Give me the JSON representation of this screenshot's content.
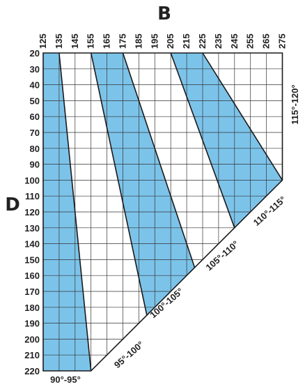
{
  "diagram": {
    "axis_b_title": "B",
    "axis_d_title": "D",
    "b_values": [
      125,
      135,
      145,
      155,
      165,
      175,
      185,
      195,
      205,
      215,
      225,
      235,
      245,
      255,
      265,
      275
    ],
    "d_values": [
      20,
      30,
      40,
      50,
      60,
      70,
      80,
      90,
      100,
      110,
      120,
      130,
      140,
      150,
      160,
      170,
      180,
      190,
      200,
      210,
      220
    ],
    "zones": [
      {
        "label": "90°-95°",
        "filled": true,
        "top": [
          125,
          135
        ],
        "bottom": [
          125,
          155
        ]
      },
      {
        "label": "95°-100°",
        "filled": false,
        "top": [
          135,
          155
        ],
        "bottom": [
          155,
          190
        ]
      },
      {
        "label": "100°-105°",
        "filled": true,
        "top": [
          155,
          175
        ],
        "bottom": [
          190,
          220
        ]
      },
      {
        "label": "105°-110°",
        "filled": false,
        "top": [
          175,
          205
        ],
        "bottom": [
          220,
          245
        ]
      },
      {
        "label": "110°-115°",
        "filled": true,
        "top": [
          205,
          225
        ],
        "bottom": [
          245,
          275
        ]
      },
      {
        "label": "115°-120°",
        "filled": false,
        "top": [
          225,
          275
        ],
        "bottom": [
          275,
          275
        ]
      }
    ],
    "colors": {
      "fill": "#7cc3ea",
      "grid": "#333333",
      "boundary": "#1a1a1a"
    }
  }
}
